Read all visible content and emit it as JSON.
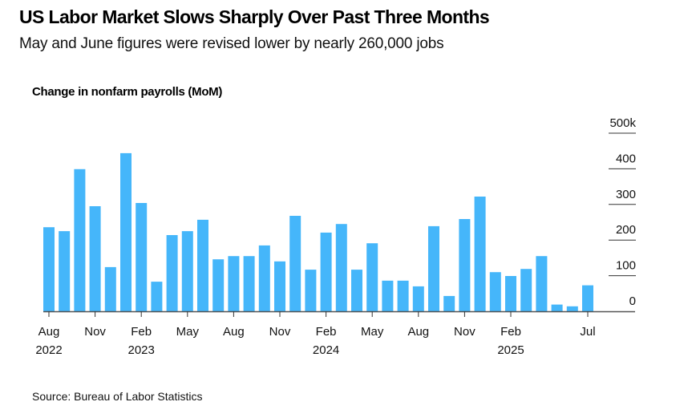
{
  "header": {
    "title": "US Labor Market Slows Sharply Over Past Three Months",
    "subtitle": "May and June figures were revised lower by nearly 260,000 jobs"
  },
  "footer": {
    "source": "Source: Bureau of Labor Statistics"
  },
  "colors": {
    "bar": "#45b6fa",
    "axis": "#555555",
    "text": "#111111"
  },
  "chart_data": {
    "type": "bar",
    "title": "Change in nonfarm payrolls (MoM)",
    "xlabel": "",
    "ylabel": "",
    "ylim": [
      0,
      500
    ],
    "grid": false,
    "y_axis_side": "right",
    "y_ticks": [
      {
        "value": 500,
        "label": "500k"
      },
      {
        "value": 400,
        "label": "400"
      },
      {
        "value": 300,
        "label": "300"
      },
      {
        "value": 200,
        "label": "200"
      },
      {
        "value": 100,
        "label": "100"
      },
      {
        "value": 0,
        "label": "0"
      }
    ],
    "x_ticks": [
      {
        "index": 0,
        "label": "Aug",
        "year": "2022"
      },
      {
        "index": 3,
        "label": "Nov",
        "year": ""
      },
      {
        "index": 6,
        "label": "Feb",
        "year": "2023"
      },
      {
        "index": 9,
        "label": "May",
        "year": ""
      },
      {
        "index": 12,
        "label": "Aug",
        "year": ""
      },
      {
        "index": 15,
        "label": "Nov",
        "year": ""
      },
      {
        "index": 18,
        "label": "Feb",
        "year": "2024"
      },
      {
        "index": 21,
        "label": "May",
        "year": ""
      },
      {
        "index": 24,
        "label": "Aug",
        "year": ""
      },
      {
        "index": 27,
        "label": "Nov",
        "year": ""
      },
      {
        "index": 30,
        "label": "Feb",
        "year": "2025"
      },
      {
        "index": 35,
        "label": "Jul",
        "year": ""
      }
    ],
    "categories": [
      "Aug 2022",
      "Sep 2022",
      "Oct 2022",
      "Nov 2022",
      "Dec 2022",
      "Jan 2023",
      "Feb 2023",
      "Mar 2023",
      "Apr 2023",
      "May 2023",
      "Jun 2023",
      "Jul 2023",
      "Aug 2023",
      "Sep 2023",
      "Oct 2023",
      "Nov 2023",
      "Dec 2023",
      "Jan 2024",
      "Feb 2024",
      "Mar 2024",
      "Apr 2024",
      "May 2024",
      "Jun 2024",
      "Jul 2024",
      "Aug 2024",
      "Sep 2024",
      "Oct 2024",
      "Nov 2024",
      "Dec 2024",
      "Jan 2025",
      "Feb 2025",
      "Mar 2025",
      "Apr 2025",
      "May 2025",
      "Jun 2025",
      "Jul 2025"
    ],
    "series": [
      {
        "name": "Change in nonfarm payrolls (thousands)",
        "values": [
          236,
          225,
          399,
          295,
          124,
          444,
          304,
          83,
          214,
          225,
          257,
          146,
          155,
          155,
          185,
          140,
          268,
          117,
          221,
          245,
          117,
          191,
          86,
          86,
          70,
          239,
          43,
          259,
          322,
          110,
          99,
          119,
          155,
          19,
          14,
          73
        ]
      }
    ]
  }
}
